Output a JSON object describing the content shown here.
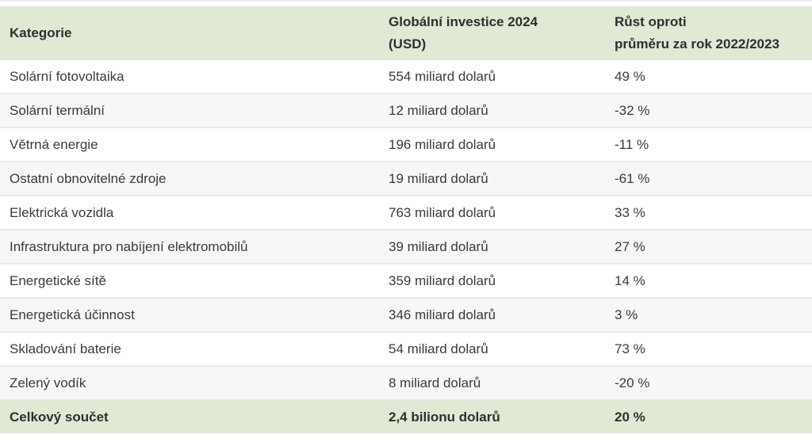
{
  "table": {
    "header": {
      "col1": "Kategorie",
      "col2_line1": "Globální investice 2024",
      "col2_line2": "(USD)",
      "col3_line1": "Růst oproti",
      "col3_line2": "průměru za rok 2022/2023"
    },
    "rows": [
      {
        "category": "Solární fotovoltaika",
        "investment": "554 miliard dolarů",
        "growth": "49 %"
      },
      {
        "category": "Solární termální",
        "investment": "12 miliard dolarů",
        "growth": "-32 %"
      },
      {
        "category": "Větrná energie",
        "investment": "196 miliard dolarů",
        "growth": "-11 %"
      },
      {
        "category": "Ostatní obnovitelné zdroje",
        "investment": "19 miliard dolarů",
        "growth": "-61 %"
      },
      {
        "category": "Elektrická vozidla",
        "investment": "763 miliard dolarů",
        "growth": "33 %"
      },
      {
        "category": "Infrastruktura pro nabíjení elektromobilů",
        "investment": "39 miliard dolarů",
        "growth": "27 %"
      },
      {
        "category": "Energetické sítě",
        "investment": "359 miliard dolarů",
        "growth": "14 %"
      },
      {
        "category": "Energetická účinnost",
        "investment": "346 miliard dolarů",
        "growth": "3 %"
      },
      {
        "category": "Skladování baterie",
        "investment": "54 miliard dolarů",
        "growth": "73 %"
      },
      {
        "category": "Zelený vodík",
        "investment": "8 miliard dolarů",
        "growth": "-20 %"
      }
    ],
    "footer": {
      "category": "Celkový součet",
      "investment": "2,4 bilionu dolarů",
      "growth": "20 %"
    }
  },
  "colors": {
    "header_bg": "#dfe9d4",
    "footer_bg": "#dfe9d4",
    "alt_row_bg": "#f7f7f5",
    "row_separator": "#e9e9e7",
    "text": "#3b3b3b"
  },
  "chart_data": {
    "type": "table",
    "title": "Globální investice 2024 (USD)",
    "columns": [
      "Kategorie",
      "Globální investice 2024 (USD)",
      "Růst oproti průměru za rok 2022/2023"
    ],
    "categories": [
      "Solární fotovoltaika",
      "Solární termální",
      "Větrná energie",
      "Ostatní obnovitelné zdroje",
      "Elektrická vozidla",
      "Infrastruktura pro nabíjení elektromobilů",
      "Energetické sítě",
      "Energetická účinnost",
      "Skladování baterie",
      "Zelený vodík"
    ],
    "series": [
      {
        "name": "Globální investice 2024 (miliard USD)",
        "values": [
          554,
          12,
          196,
          19,
          763,
          39,
          359,
          346,
          54,
          8
        ]
      },
      {
        "name": "Růst oproti průměru za rok 2022/2023 (%)",
        "values": [
          49,
          -32,
          -11,
          -61,
          33,
          27,
          14,
          3,
          73,
          -20
        ]
      }
    ],
    "total": {
      "label": "Celkový součet",
      "investment_usd_trillions": 2.4,
      "growth_percent": 20
    }
  }
}
